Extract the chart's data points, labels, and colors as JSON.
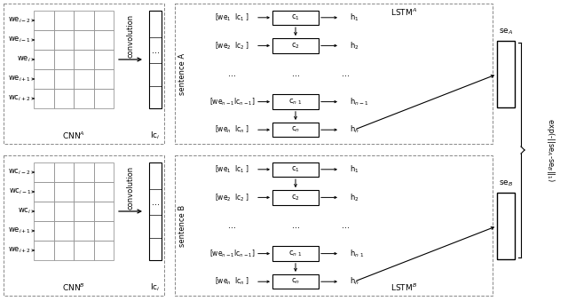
{
  "bg_color": "#ffffff",
  "fig_width": 6.4,
  "fig_height": 3.39,
  "top_we_labels": [
    "we$_{i-2}$",
    "we$_{i-1}$",
    "we$_{i}$",
    "we$_{i+1}$",
    "wc$_{i+2}$"
  ],
  "bot_we_labels": [
    "wc$_{i-2}$",
    "wc$_{i-1}$",
    "wc$_{i}$",
    "we$_{i+1}$",
    "we$_{i+2}$"
  ],
  "cnn_a_label": "CNN$^A$",
  "cnn_b_label": "CNN$^B$",
  "lstm_a_label": "LSTM$^A$",
  "lstm_b_label": "LSTM$^B$",
  "lc_top_label": "lc$_i$",
  "lc_bot_label": "lc$_i$",
  "conv_label": "convolution",
  "sentence_a_label": "sentence A",
  "sentence_b_label": "sentence B",
  "se_a_label": "se$_A$",
  "se_b_label": "se$_B$",
  "exp_label": "exp(-||se$_A$-se$_B$||$_1$)",
  "lstm_rows_top": [
    {
      "input": "[we$_1$  lc$_1$ ]",
      "cell": "c$_1$",
      "hidden": "h$_1$",
      "dot": false
    },
    {
      "input": "[we$_2$  lc$_2$ ]",
      "cell": "c$_2$",
      "hidden": "h$_2$",
      "dot": false
    },
    {
      "input": "...",
      "cell": "...",
      "hidden": "...",
      "dot": true
    },
    {
      "input": "[we$_{n-1}$lc$_{n-1}$]",
      "cell": "c$_{n\\ 1}$",
      "hidden": "h$_{n-1}$",
      "dot": false
    },
    {
      "input": "[we$_n$  lc$_n$ ]",
      "cell": "c$_n$",
      "hidden": "h$_n$",
      "dot": false
    }
  ],
  "lstm_rows_bot": [
    {
      "input": "[we$_1$  lc$_1$ ]",
      "cell": "c$_1$",
      "hidden": "h$_1$",
      "dot": false
    },
    {
      "input": "[we$_2$  lc$_2$ ]",
      "cell": "c$_2$",
      "hidden": "h$_2$",
      "dot": false
    },
    {
      "input": "...",
      "cell": "...",
      "hidden": "...",
      "dot": true
    },
    {
      "input": "[we$_{n-1}$lc$_{n-1}$]",
      "cell": "c$_{n\\ 1}$",
      "hidden": "h$_{n\\ 1}$",
      "dot": false
    },
    {
      "input": "[we$_n$  lc$_n$ ]",
      "cell": "c$_n$",
      "hidden": "h$_n$",
      "dot": false
    }
  ]
}
